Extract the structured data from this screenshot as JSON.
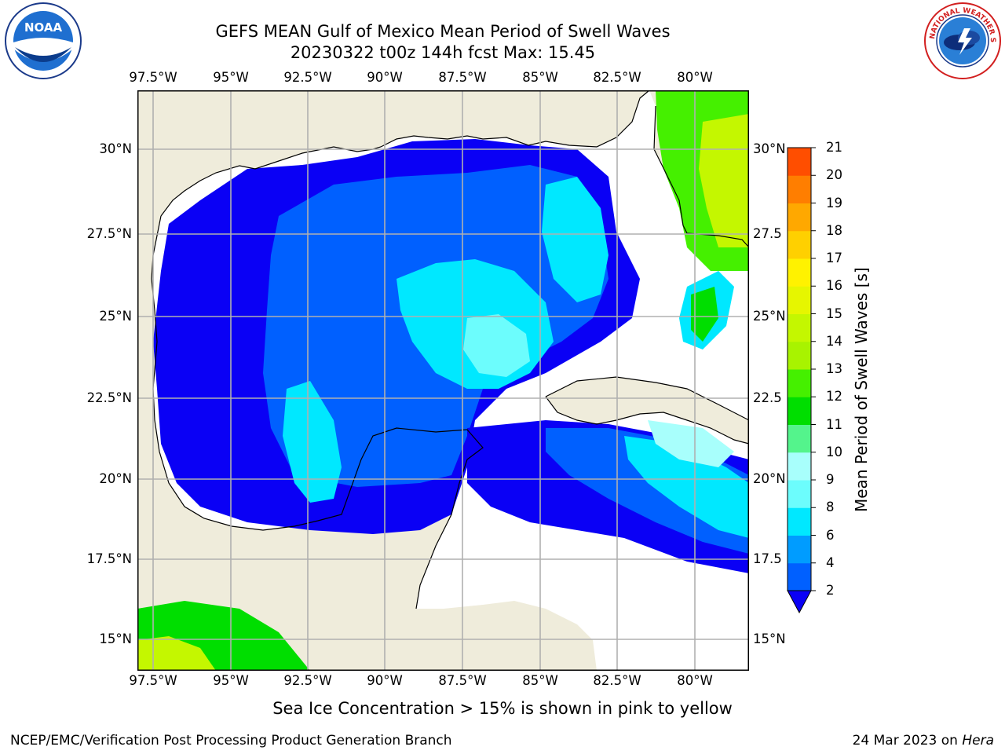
{
  "header": {
    "title_line1": "GEFS MEAN Gulf of Mexico Mean Period of Swell Waves",
    "title_line2": "20230322 t00z 144h fcst   Max: 15.45"
  },
  "logos": {
    "left": {
      "name": "noaa-logo",
      "text": "NOAA"
    },
    "right": {
      "name": "nws-logo",
      "text": "NATIONAL WEATHER SERVICE"
    }
  },
  "map": {
    "lon_labels": [
      "97.5°W",
      "95°W",
      "92.5°W",
      "90°W",
      "87.5°W",
      "85°W",
      "82.5°W",
      "80°W"
    ],
    "lat_labels_left": [
      "30°N",
      "27.5°N",
      "25°N",
      "22.5°N",
      "20°N",
      "17.5°N",
      "15°N"
    ],
    "lat_labels_right": [
      "30°N",
      "27.5",
      "25°N",
      "22.5",
      "20°N",
      "17.5",
      "15°N"
    ],
    "colors": {
      "land": "#efecdb",
      "ocean": "#ffffff",
      "grid": "#b0b0b0"
    }
  },
  "colorbar": {
    "label": "Mean Period of Swell Waves [s]",
    "ticks": [
      "2",
      "4",
      "6",
      "8",
      "9",
      "10",
      "11",
      "12",
      "13",
      "14",
      "15",
      "16",
      "17",
      "18",
      "19",
      "20",
      "21"
    ],
    "colors": [
      "#0a00f5",
      "#0060ff",
      "#009cff",
      "#00e8ff",
      "#6cfdfd",
      "#a8fffc",
      "#54f48c",
      "#00de00",
      "#45f000",
      "#a8f300",
      "#c4f700",
      "#e6f600",
      "#fff200",
      "#ffd000",
      "#ffa800",
      "#ff7e00",
      "#ff4e00",
      "#ff1a00"
    ]
  },
  "note": "Sea Ice Concentration > 15% is shown in pink to yellow",
  "footer": {
    "left": "NCEP/EMC/Verification Post Processing Product Generation Branch",
    "date": "24 Mar 2023 on",
    "host": "Hera"
  }
}
